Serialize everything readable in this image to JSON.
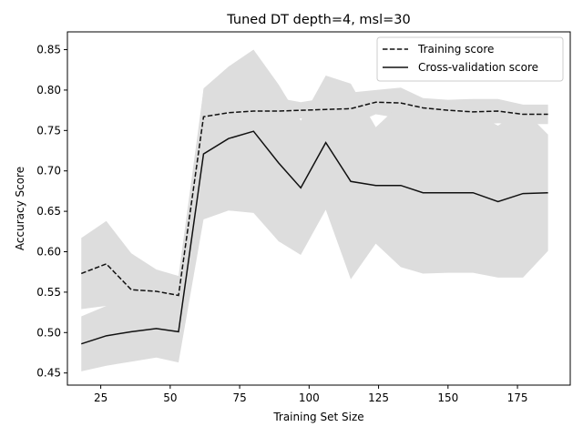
{
  "chart_data": {
    "type": "line",
    "title": "Tuned DT depth=4, msl=30",
    "xlabel": "Training Set Size",
    "ylabel": "Accuracy Score",
    "xlim": [
      13,
      194
    ],
    "ylim": [
      0.435,
      0.872
    ],
    "xticks": [
      25,
      50,
      75,
      100,
      125,
      150,
      175
    ],
    "yticks": [
      0.45,
      0.5,
      0.55,
      0.6,
      0.65,
      0.7,
      0.75,
      0.8,
      0.85
    ],
    "grid": false,
    "legend_position": "top-right",
    "band_color": "#dddddd",
    "line_color": "#111111",
    "x": [
      18,
      27,
      36,
      45,
      53,
      62,
      71,
      80,
      89,
      97,
      106,
      115,
      124,
      133,
      141,
      150,
      159,
      168,
      177,
      186
    ],
    "series": [
      {
        "name": "Training score",
        "style": "dashed",
        "values": [
          0.573,
          0.585,
          0.553,
          0.551,
          0.546,
          0.767,
          0.772,
          0.774,
          0.774,
          0.775,
          0.776,
          0.777,
          0.785,
          0.784,
          0.778,
          0.775,
          0.773,
          0.774,
          0.77,
          0.77
        ],
        "band_upper": [
          0.617,
          0.638,
          0.598,
          0.578,
          0.57,
          0.8,
          0.8,
          0.81,
          0.79,
          0.785,
          0.79,
          0.797,
          0.8,
          0.803,
          0.79,
          0.788,
          0.789,
          0.789,
          0.782,
          0.782
        ],
        "band_lower": [
          0.529,
          0.533,
          0.508,
          0.524,
          0.522,
          0.734,
          0.744,
          0.738,
          0.758,
          0.765,
          0.762,
          0.757,
          0.77,
          0.765,
          0.766,
          0.762,
          0.757,
          0.759,
          0.758,
          0.758
        ]
      },
      {
        "name": "Cross-validation score",
        "style": "solid",
        "values": [
          0.486,
          0.496,
          0.501,
          0.505,
          0.501,
          0.721,
          0.74,
          0.749,
          0.71,
          0.679,
          0.735,
          0.687,
          0.682,
          0.682,
          0.673,
          0.673,
          0.673,
          0.662,
          0.672,
          0.673
        ],
        "band_upper": [
          0.52,
          0.533,
          0.538,
          0.541,
          0.539,
          0.802,
          0.829,
          0.85,
          0.807,
          0.762,
          0.818,
          0.808,
          0.754,
          0.783,
          0.773,
          0.772,
          0.772,
          0.756,
          0.776,
          0.745
        ],
        "band_lower": [
          0.452,
          0.459,
          0.464,
          0.469,
          0.463,
          0.64,
          0.651,
          0.648,
          0.613,
          0.596,
          0.652,
          0.566,
          0.61,
          0.581,
          0.573,
          0.574,
          0.574,
          0.568,
          0.568,
          0.601
        ]
      }
    ]
  }
}
